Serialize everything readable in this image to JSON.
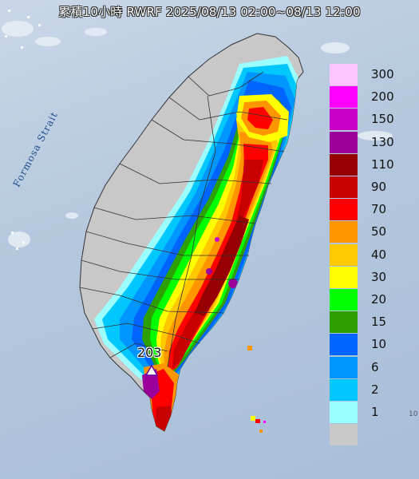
{
  "title": "累積10小時 RWRF 2025/08/13 02:00~08/13 12:00",
  "strait_label": "Formosa Strait",
  "peak_label": "203",
  "corner_label": "10",
  "legend": [
    {
      "label": "300",
      "color": "#ffc4ff"
    },
    {
      "label": "200",
      "color": "#ff00ff"
    },
    {
      "label": "150",
      "color": "#c800c8"
    },
    {
      "label": "130",
      "color": "#9b009b"
    },
    {
      "label": "110",
      "color": "#960000"
    },
    {
      "label": "90",
      "color": "#c80000"
    },
    {
      "label": "70",
      "color": "#ff0000"
    },
    {
      "label": "50",
      "color": "#ff9600"
    },
    {
      "label": "40",
      "color": "#ffc800"
    },
    {
      "label": "30",
      "color": "#ffff00"
    },
    {
      "label": "20",
      "color": "#00ff00"
    },
    {
      "label": "15",
      "color": "#2e9f00"
    },
    {
      "label": "10",
      "color": "#0064ff"
    },
    {
      "label": "6",
      "color": "#0096ff"
    },
    {
      "label": "2",
      "color": "#00c8ff"
    },
    {
      "label": "1",
      "color": "#9bffff"
    },
    {
      "label": "",
      "color": "#c8c8c8"
    }
  ]
}
